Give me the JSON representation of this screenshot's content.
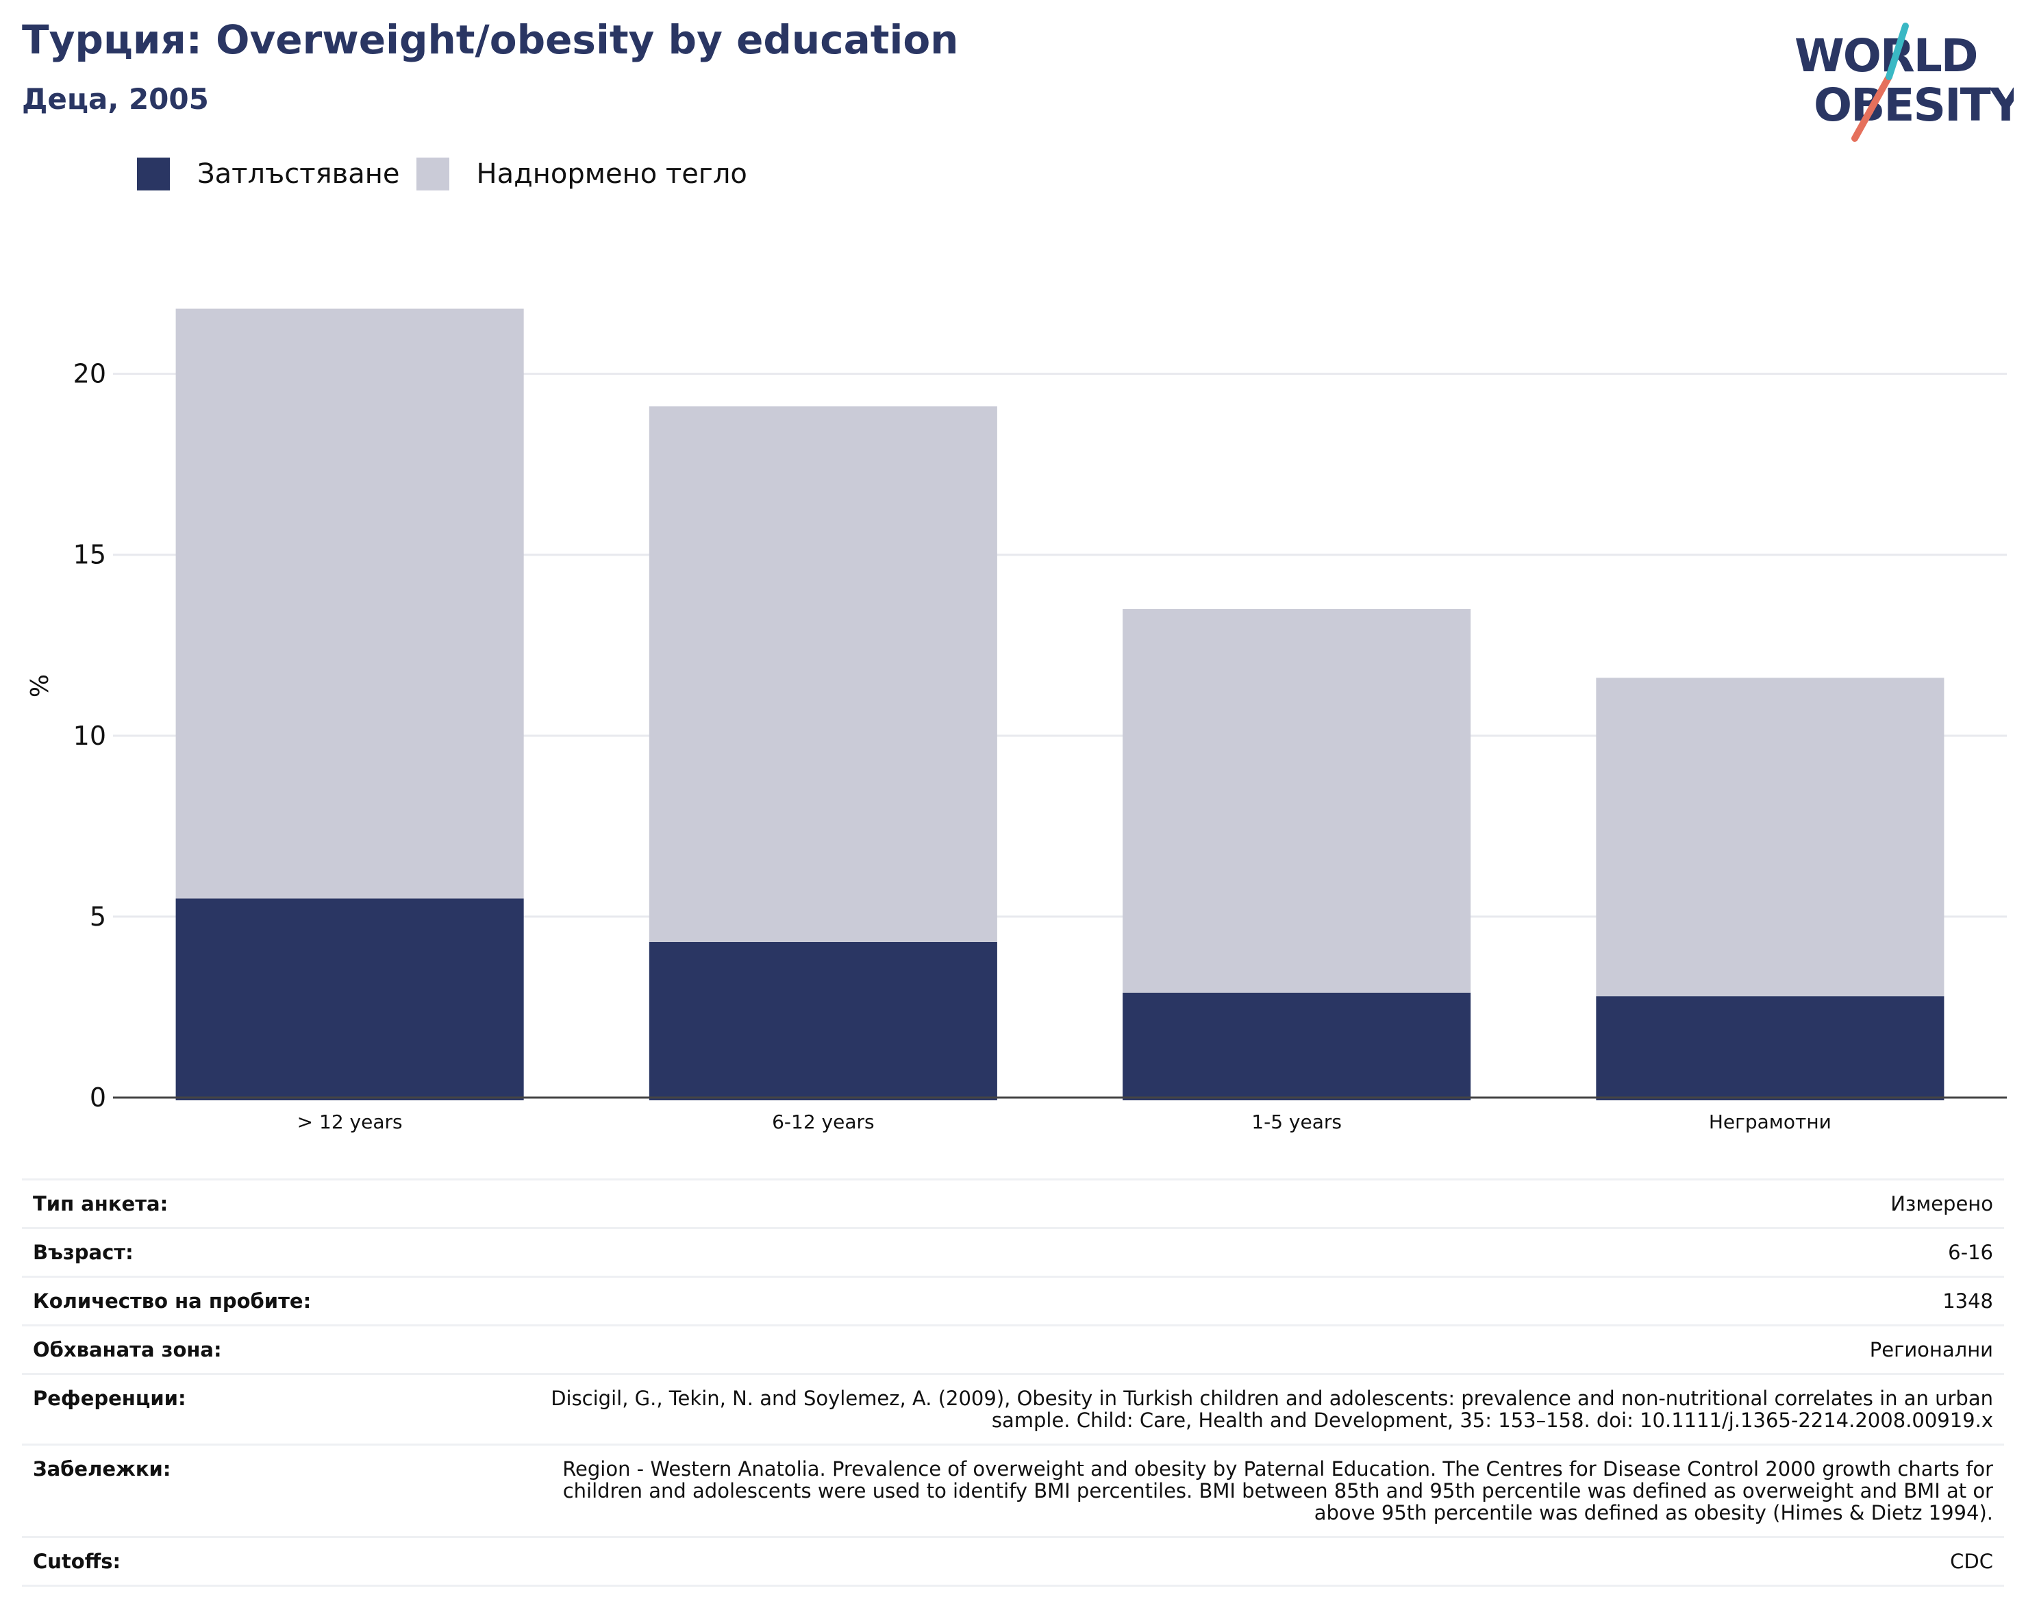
{
  "header": {
    "title": "Турция: Overweight/obesity by education",
    "subtitle": "Деца, 2005"
  },
  "logo": {
    "line1": "WORLD",
    "line2": "OBESITY",
    "colors": {
      "text": "#2a3663",
      "slash_teal": "#3ab8c4",
      "slash_orange": "#e5705c"
    }
  },
  "legend": {
    "items": [
      {
        "label": "Затлъстяване",
        "color": "#2a3663"
      },
      {
        "label": "Наднормено тегло",
        "color": "#cacbd7"
      }
    ]
  },
  "chart_data": {
    "type": "bar",
    "stacked": true,
    "categories": [
      "> 12 years",
      "6-12 years",
      "1-5 years",
      "Неграмотни"
    ],
    "series": [
      {
        "name": "Затлъстяване",
        "color": "#2a3663",
        "values": [
          5.5,
          4.3,
          2.9,
          2.8
        ]
      },
      {
        "name": "Наднормено тегло",
        "color": "#cacbd7",
        "values": [
          16.3,
          14.8,
          10.6,
          8.8
        ]
      }
    ],
    "ylabel": "%",
    "ylim": [
      0,
      22
    ],
    "yticks": [
      0,
      5,
      10,
      15,
      20
    ],
    "grid": true,
    "legend_position": "top-left"
  },
  "meta": {
    "rows": [
      {
        "label": "Тип анкета:",
        "value": "Измерено"
      },
      {
        "label": "Възраст:",
        "value": "6-16"
      },
      {
        "label": "Количество на пробите:",
        "value": "1348"
      },
      {
        "label": "Обхваната зона:",
        "value": "Регионални"
      },
      {
        "label": "Референции:",
        "value": "Discigil, G., Tekin, N. and Soylemez, A. (2009), Obesity in Turkish children and adolescents: prevalence and non-nutritional correlates in an urban sample. Child: Care, Health and Development, 35: 153–158. doi: 10.1111/j.1365-2214.2008.00919.x"
      },
      {
        "label": "Забележки:",
        "value": "Region - Western Anatolia. Prevalence of overweight and obesity by Paternal Education. The Centres for Disease Control 2000 growth charts for children and adolescents were used to identify BMI percentiles. BMI between 85th and 95th percentile was defined as overweight and BMI at or above 95th percentile was defined as obesity (Himes & Dietz 1994)."
      },
      {
        "label": "Cutoffs:",
        "value": "CDC"
      }
    ]
  }
}
